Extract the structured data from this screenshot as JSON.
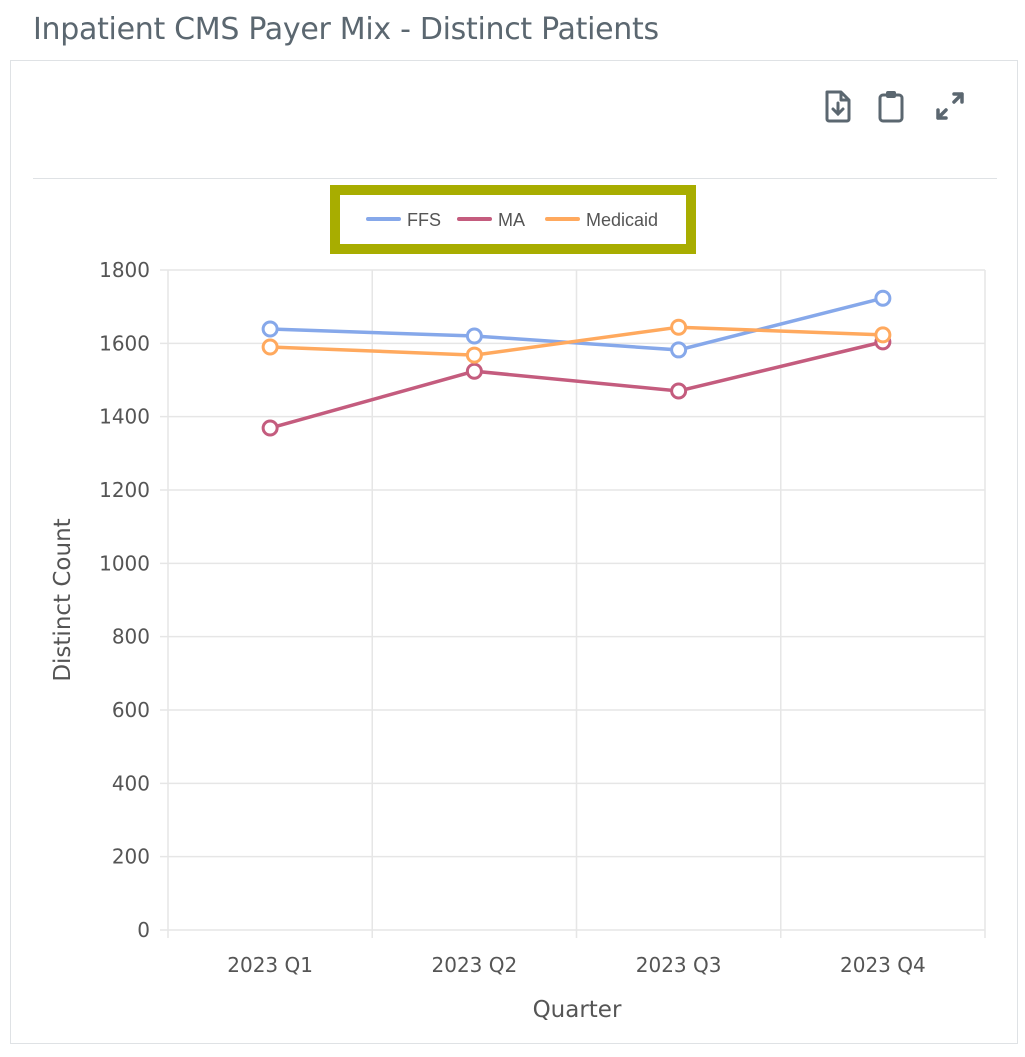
{
  "title": "Inpatient CMS Payer Mix - Distinct Patients",
  "toolbar": {
    "icons": [
      "download-icon",
      "clipboard-icon",
      "expand-icon"
    ]
  },
  "chart_data": {
    "type": "line",
    "title": "Inpatient CMS Payer Mix - Distinct Patients",
    "xlabel": "Quarter",
    "ylabel": "Distinct Count",
    "categories": [
      "2023 Q1",
      "2023 Q2",
      "2023 Q3",
      "2023 Q4"
    ],
    "ylim": [
      0,
      1800
    ],
    "yticks": [
      0,
      200,
      400,
      600,
      800,
      1000,
      1200,
      1400,
      1600,
      1800
    ],
    "grid": true,
    "legend_position": "top-center",
    "series": [
      {
        "name": "FFS",
        "color": "#86a8ea",
        "values": [
          1639,
          1620,
          1582,
          1723
        ]
      },
      {
        "name": "MA",
        "color": "#c45c7e",
        "values": [
          1369,
          1524,
          1470,
          1604
        ]
      },
      {
        "name": "Medicaid",
        "color": "#ffa95e",
        "values": [
          1590,
          1568,
          1644,
          1623
        ]
      }
    ]
  }
}
